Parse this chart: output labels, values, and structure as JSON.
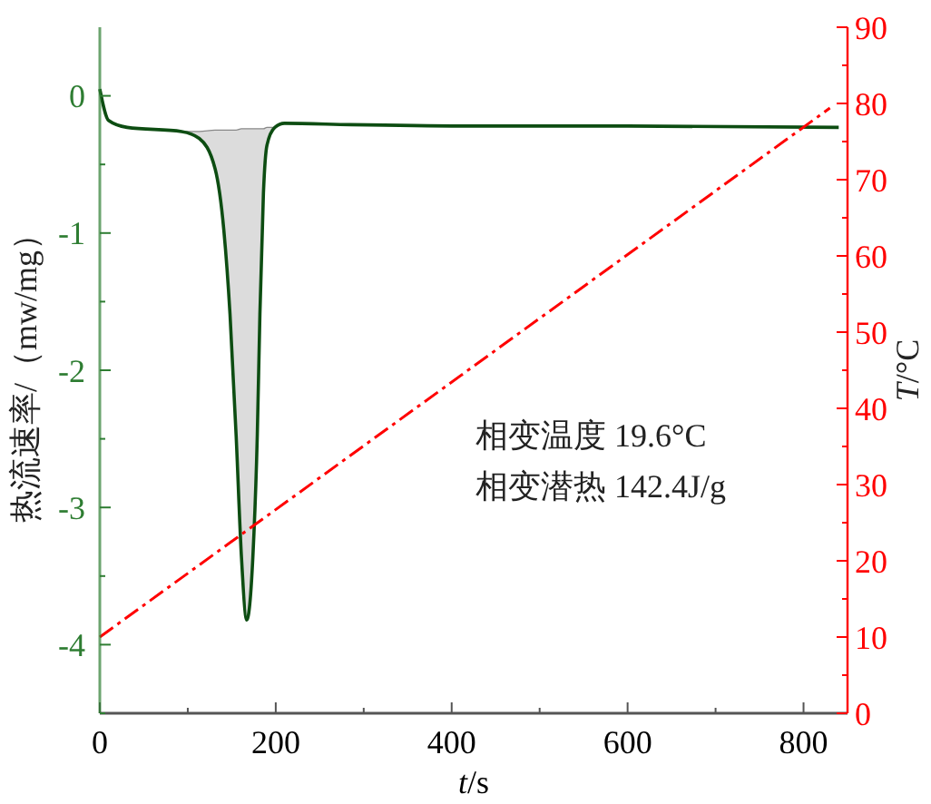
{
  "chart_data": {
    "type": "line",
    "xlabel": "t/s",
    "ylabel": "热流速率/（mw/mg）",
    "y2label": "T/°C",
    "annotations": [
      "相变温度 19.6°C",
      "相变潜热  142.4J/g"
    ],
    "xlim": [
      0,
      850
    ],
    "xticks": [
      0,
      {
        "value": 100,
        "label": null
      },
      200,
      {
        "value": 300,
        "label": null
      },
      400,
      {
        "value": 500,
        "label": null
      },
      600,
      {
        "value": 700,
        "label": null
      },
      800
    ],
    "ylim": [
      -4.5,
      0.5
    ],
    "yticks": [
      {
        "value": -4.5,
        "label": null
      },
      -4,
      {
        "value": -3.5,
        "label": null
      },
      -3,
      {
        "value": -2.5,
        "label": null
      },
      -2,
      {
        "value": -1.5,
        "label": null
      },
      -1,
      {
        "value": -0.5,
        "label": null
      },
      0
    ],
    "y2lim": [
      0,
      90
    ],
    "y2ticks": [
      0,
      {
        "value": 5,
        "label": null
      },
      10,
      {
        "value": 15,
        "label": null
      },
      20,
      {
        "value": 25,
        "label": null
      },
      30,
      {
        "value": 35,
        "label": null
      },
      40,
      {
        "value": 45,
        "label": null
      },
      50,
      {
        "value": 55,
        "label": null
      },
      60,
      {
        "value": 65,
        "label": null
      },
      70,
      {
        "value": 75,
        "label": null
      },
      80,
      {
        "value": 85,
        "label": null
      },
      90
    ],
    "grid": false,
    "series": [
      {
        "color": "#0d4d12",
        "x": [
          0,
          10,
          31,
          93,
          113,
          131,
          141,
          148,
          155,
          161,
          167,
          174,
          179,
          182,
          186,
          190,
          199,
          210,
          285,
          422,
          600,
          840
        ],
        "values": [
          0.05,
          -0.18,
          -0.23,
          -0.26,
          -0.31,
          -0.53,
          -0.98,
          -1.59,
          -2.48,
          -3.36,
          -3.82,
          -3.36,
          -2.48,
          -1.59,
          -0.71,
          -0.36,
          -0.23,
          -0.2,
          -0.21,
          -0.22,
          -0.22,
          -0.23
        ],
        "lower": [
          null,
          null,
          null,
          -0.26,
          -0.31,
          -0.53,
          -0.98,
          -1.59,
          -2.48,
          -3.36,
          -3.82,
          -3.36,
          -2.48,
          -1.59,
          -0.71,
          -0.36,
          -0.23,
          null,
          null,
          null,
          null,
          null
        ],
        "upper": [
          null,
          null,
          null,
          -0.26,
          -0.26,
          -0.25,
          -0.25,
          -0.25,
          -0.25,
          -0.24,
          -0.24,
          -0.24,
          -0.24,
          -0.24,
          -0.24,
          -0.23,
          -0.23,
          null,
          null,
          null,
          null,
          null
        ]
      },
      {
        "type": "line",
        "axis": "y2",
        "color": "#ff0000",
        "line_style": "dashdot",
        "x": [
          0,
          830
        ],
        "values": [
          10,
          79.4
        ]
      }
    ]
  }
}
